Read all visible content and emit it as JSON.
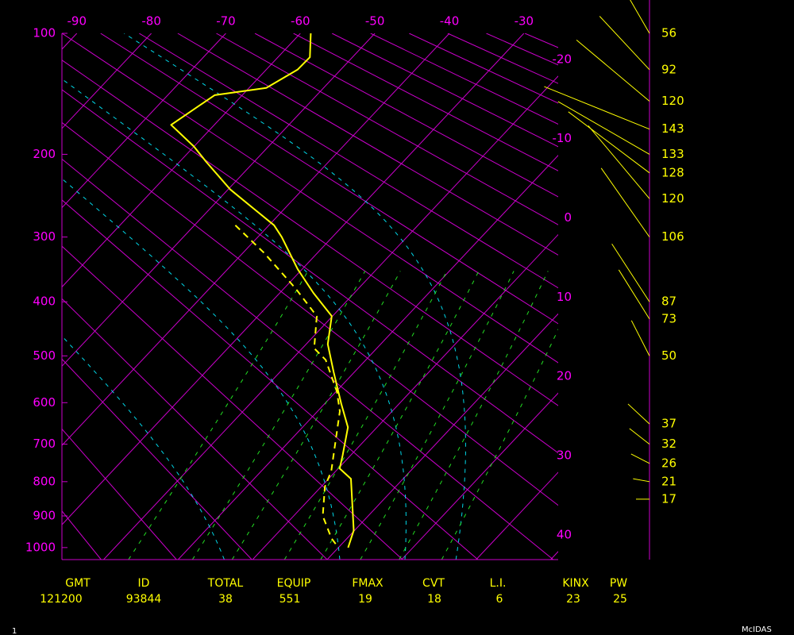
{
  "chart_data": {
    "type": "skewt",
    "xlim": [
      -92,
      -25.4
    ],
    "xticks": [
      -90,
      -80,
      -70,
      -60,
      -50,
      -40,
      -30
    ],
    "isotherm_labels": [
      -20,
      -10,
      0,
      10,
      20,
      30,
      40
    ],
    "ylim": [
      100,
      1040
    ],
    "yticks": [
      100,
      200,
      300,
      400,
      500,
      600,
      700,
      800,
      900,
      1000
    ],
    "colors": {
      "grid": "#cc00cc",
      "labels": "#ff00ff",
      "moist_adiabats": "#00d8e8",
      "mixing_ratio": "#22dd22"
    },
    "series": [
      {
        "color": "#ffff00",
        "dash": false,
        "pressure": [
          100,
          116,
          125,
          139,
          145,
          171,
          192,
          208,
          239,
          263,
          284,
          300,
          347,
          385,
          425,
          477,
          533,
          602,
          658,
          728,
          764,
          792,
          945,
          1000
        ],
        "values": [
          -58.6,
          -55.7,
          -55.8,
          -57.7,
          -63.7,
          -65.8,
          -60.0,
          -56.4,
          -49.7,
          -44.0,
          -39.3,
          -36.8,
          -30.6,
          -25.5,
          -20.1,
          -17.1,
          -12.8,
          -7.8,
          -3.9,
          -1.1,
          0.2,
          3.0,
          9.9,
          11.3
        ]
      },
      {
        "color": "#ffff00",
        "dash": true,
        "pressure": [
          284,
          323,
          378,
          425,
          485,
          508,
          575,
          620,
          771,
          814,
          900,
          970,
          1000
        ],
        "values": [
          -44.5,
          -37.1,
          -28.4,
          -22.1,
          -18.4,
          -15.4,
          -9.9,
          -7.0,
          -0.6,
          0.5,
          3.9,
          7.9,
          10.0
        ]
      }
    ],
    "wind": {
      "color": "#ffff00",
      "pressure": [
        100,
        125,
        150,
        175,
        200,
        220,
        250,
        300,
        400,
        430,
        500,
        650,
        700,
        750,
        800,
        850
      ],
      "values": [
        56,
        92,
        120,
        143,
        133,
        128,
        120,
        106,
        87,
        73,
        50,
        37,
        32,
        26,
        21,
        17
      ],
      "direction": [
        330,
        317,
        310,
        292,
        300,
        307,
        320,
        325,
        327,
        328,
        333,
        313,
        308,
        297,
        280,
        270
      ]
    }
  },
  "indices": {
    "headers": [
      "GMT",
      "ID",
      "TOTAL",
      "EQUIP",
      "FMAX",
      "CVT",
      "L.I.",
      "KINX",
      "PW"
    ],
    "values": [
      "121200",
      "93844",
      "38",
      "551",
      "19",
      "18",
      "6",
      "23",
      "25"
    ]
  },
  "footer": {
    "left": "1",
    "right": "McIDAS"
  }
}
